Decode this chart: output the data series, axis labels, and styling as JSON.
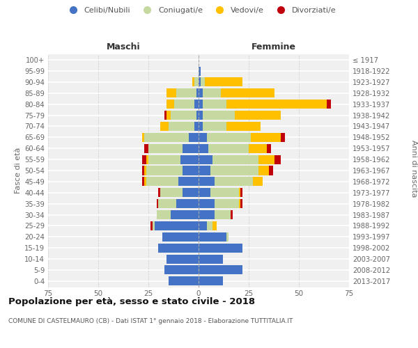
{
  "age_groups": [
    "0-4",
    "5-9",
    "10-14",
    "15-19",
    "20-24",
    "25-29",
    "30-34",
    "35-39",
    "40-44",
    "45-49",
    "50-54",
    "55-59",
    "60-64",
    "65-69",
    "70-74",
    "75-79",
    "80-84",
    "85-89",
    "90-94",
    "95-99",
    "100+"
  ],
  "birth_years": [
    "2013-2017",
    "2008-2012",
    "2003-2007",
    "1998-2002",
    "1993-1997",
    "1988-1992",
    "1983-1987",
    "1978-1982",
    "1973-1977",
    "1968-1972",
    "1963-1967",
    "1958-1962",
    "1953-1957",
    "1948-1952",
    "1943-1947",
    "1938-1942",
    "1933-1937",
    "1928-1932",
    "1923-1927",
    "1918-1922",
    "≤ 1917"
  ],
  "maschi": {
    "celibi": [
      15,
      17,
      16,
      20,
      18,
      22,
      14,
      11,
      8,
      10,
      8,
      9,
      8,
      5,
      2,
      1,
      2,
      1,
      0,
      0,
      0
    ],
    "coniugati": [
      0,
      0,
      0,
      0,
      0,
      1,
      7,
      9,
      11,
      16,
      18,
      16,
      17,
      22,
      13,
      13,
      10,
      10,
      2,
      0,
      0
    ],
    "vedovi": [
      0,
      0,
      0,
      0,
      0,
      0,
      0,
      0,
      0,
      1,
      1,
      1,
      0,
      1,
      4,
      2,
      4,
      5,
      1,
      0,
      0
    ],
    "divorziati": [
      0,
      0,
      0,
      0,
      0,
      1,
      0,
      1,
      1,
      1,
      1,
      2,
      2,
      0,
      0,
      1,
      0,
      0,
      0,
      0,
      0
    ]
  },
  "femmine": {
    "nubili": [
      12,
      22,
      12,
      22,
      14,
      4,
      8,
      8,
      6,
      8,
      6,
      7,
      5,
      4,
      2,
      2,
      2,
      2,
      1,
      1,
      0
    ],
    "coniugate": [
      0,
      0,
      0,
      0,
      1,
      3,
      8,
      12,
      14,
      19,
      24,
      23,
      20,
      22,
      12,
      16,
      12,
      9,
      2,
      0,
      0
    ],
    "vedove": [
      0,
      0,
      0,
      0,
      0,
      2,
      0,
      1,
      1,
      5,
      5,
      8,
      9,
      15,
      17,
      23,
      50,
      27,
      19,
      0,
      0
    ],
    "divorziate": [
      0,
      0,
      0,
      0,
      0,
      0,
      1,
      1,
      1,
      0,
      2,
      3,
      2,
      2,
      0,
      0,
      2,
      0,
      0,
      0,
      0
    ]
  },
  "colors": {
    "celibi_nubili": "#4472c4",
    "coniugati": "#c5d9a0",
    "vedovi": "#ffc000",
    "divorziati": "#c0000b"
  },
  "xlim": 75,
  "title": "Popolazione per età, sesso e stato civile - 2018",
  "subtitle": "COMUNE DI CASTELMAURO (CB) - Dati ISTAT 1° gennaio 2018 - Elaborazione TUTTITALIA.IT",
  "xlabel_left": "Maschi",
  "xlabel_right": "Femmine",
  "ylabel_left": "Fasce di età",
  "ylabel_right": "Anni di nascita"
}
